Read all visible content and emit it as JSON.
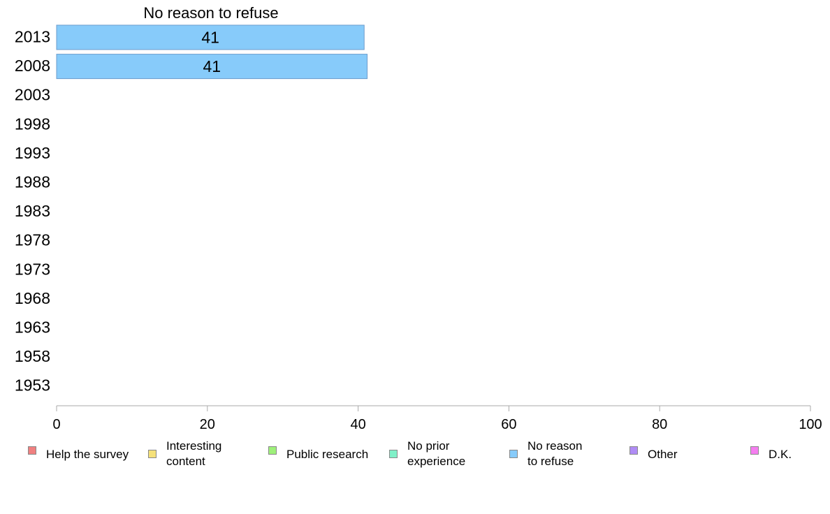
{
  "chart_data": {
    "type": "bar",
    "orientation": "horizontal",
    "categories": [
      "2013",
      "2008",
      "2003",
      "1998",
      "1993",
      "1988",
      "1983",
      "1978",
      "1973",
      "1968",
      "1963",
      "1958",
      "1953"
    ],
    "series": [
      {
        "name": "Help the survey",
        "color": "#f08080",
        "values": [
          null,
          null,
          null,
          null,
          null,
          null,
          null,
          null,
          null,
          null,
          null,
          null,
          null
        ]
      },
      {
        "name": "Interesting content",
        "color": "#f5e17a",
        "values": [
          null,
          null,
          null,
          null,
          null,
          null,
          null,
          null,
          null,
          null,
          null,
          null,
          null
        ]
      },
      {
        "name": "Public research",
        "color": "#9ef07a",
        "values": [
          null,
          null,
          null,
          null,
          null,
          null,
          null,
          null,
          null,
          null,
          null,
          null,
          null
        ]
      },
      {
        "name": "No prior experience",
        "color": "#80f0c8",
        "values": [
          null,
          null,
          null,
          null,
          null,
          null,
          null,
          null,
          null,
          null,
          null,
          null,
          null
        ]
      },
      {
        "name": "No reason to refuse",
        "color": "#87cbfa",
        "values": [
          40.8,
          41.2,
          null,
          null,
          null,
          null,
          null,
          null,
          null,
          null,
          null,
          null,
          null
        ],
        "labels": [
          "41",
          "41",
          "",
          "",
          "",
          "",
          "",
          "",
          "",
          "",
          "",
          "",
          ""
        ]
      },
      {
        "name": "Other",
        "color": "#b08cf5",
        "values": [
          null,
          null,
          null,
          null,
          null,
          null,
          null,
          null,
          null,
          null,
          null,
          null,
          null
        ]
      },
      {
        "name": "D.K.",
        "color": "#f57ef0",
        "values": [
          null,
          null,
          null,
          null,
          null,
          null,
          null,
          null,
          null,
          null,
          null,
          null,
          null
        ]
      }
    ],
    "header_label": "No reason to refuse",
    "xlim": [
      0,
      100
    ],
    "xticks": [
      "0",
      "20",
      "40",
      "60",
      "80",
      "100"
    ],
    "grid": false,
    "legend_position": "bottom"
  },
  "legend": [
    {
      "label": "Help the survey",
      "color": "#f08080"
    },
    {
      "label": "Interesting\ncontent",
      "color": "#f5e17a"
    },
    {
      "label": "Public research",
      "color": "#9ef07a"
    },
    {
      "label": "No prior\nexperience",
      "color": "#80f0c8"
    },
    {
      "label": "No reason\nto refuse",
      "color": "#87cbfa"
    },
    {
      "label": "Other",
      "color": "#b08cf5"
    },
    {
      "label": "D.K.",
      "color": "#f57ef0"
    }
  ]
}
